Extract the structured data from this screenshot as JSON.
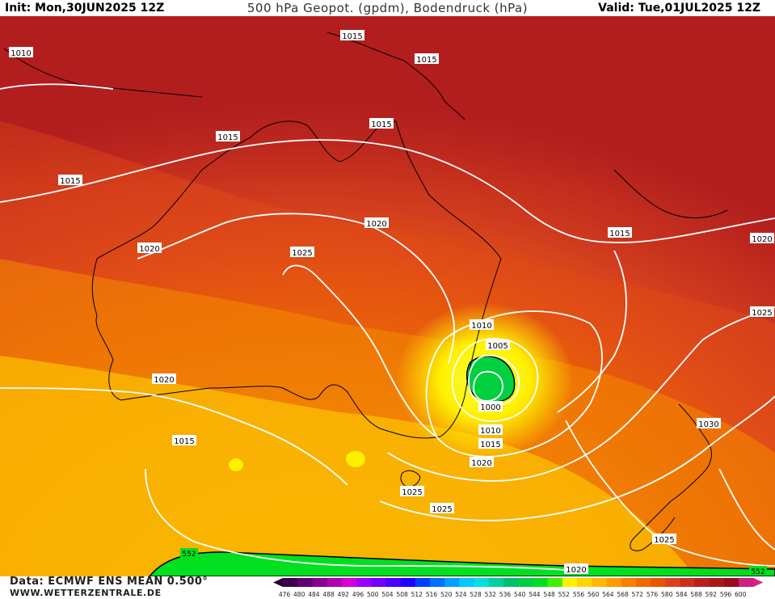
{
  "header": {
    "init": "Init: Mon,30JUN2025 12Z",
    "title": "500 hPa Geopot. (gpdm), Bodendruck (hPa)",
    "valid": "Valid: Tue,01JUL2025 12Z"
  },
  "footer": {
    "data_source": "Data: ECMWF ENS MEAN 0.500°",
    "website": "WWW.WETTERZENTRALE.DE"
  },
  "colors": {
    "ocean_land_bg": "#b21e1e",
    "isobar": "#ffffff",
    "coast": "#000000"
  },
  "map": {
    "region": "Australia / Tasman Sea / New Zealand",
    "low_center_labels": [
      "1005",
      "1000"
    ],
    "isobar_labels": [
      {
        "text": "1010"
      },
      {
        "text": "1015"
      },
      {
        "text": "1015"
      },
      {
        "text": "1015"
      },
      {
        "text": "1015"
      },
      {
        "text": "1015"
      },
      {
        "text": "1020"
      },
      {
        "text": "1020"
      },
      {
        "text": "1025"
      },
      {
        "text": "1015"
      },
      {
        "text": "1020"
      },
      {
        "text": "1025"
      },
      {
        "text": "1010"
      },
      {
        "text": "1005"
      },
      {
        "text": "1000"
      },
      {
        "text": "1010"
      },
      {
        "text": "1015"
      },
      {
        "text": "1020"
      },
      {
        "text": "1030"
      },
      {
        "text": "1020"
      },
      {
        "text": "1015"
      },
      {
        "text": "1025"
      },
      {
        "text": "1025"
      },
      {
        "text": "1025"
      },
      {
        "text": "1020"
      }
    ],
    "contour_label_552": "552",
    "contour_label_552b": "552"
  },
  "legend": {
    "values": [
      "476",
      "480",
      "484",
      "488",
      "492",
      "496",
      "500",
      "504",
      "508",
      "512",
      "516",
      "520",
      "524",
      "528",
      "532",
      "536",
      "540",
      "544",
      "548",
      "552",
      "556",
      "560",
      "564",
      "568",
      "572",
      "576",
      "580",
      "584",
      "588",
      "592",
      "596",
      "600"
    ],
    "colors": [
      "#3d004f",
      "#5e0070",
      "#8a0090",
      "#b000b0",
      "#d400d4",
      "#9a00ff",
      "#7000ff",
      "#4a00ff",
      "#2000ff",
      "#0040ff",
      "#0070ff",
      "#00a0ff",
      "#00c8ff",
      "#00e0e0",
      "#00d0a0",
      "#00c070",
      "#00d040",
      "#00e020",
      "#40f000",
      "#fff000",
      "#ffd400",
      "#ffb800",
      "#ff9c00",
      "#f88000",
      "#f06a00",
      "#e85400",
      "#dc4020",
      "#c83020",
      "#b82020",
      "#a81818",
      "#980c20",
      "#cc2080"
    ]
  }
}
